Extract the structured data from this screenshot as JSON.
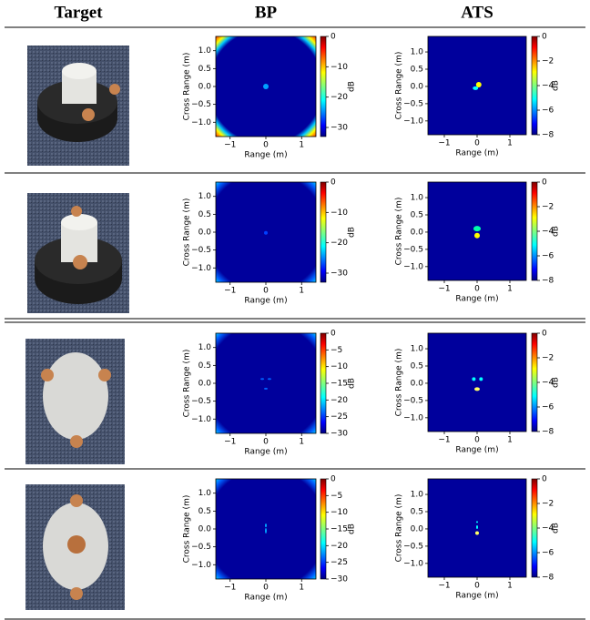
{
  "header": {
    "target": "Target",
    "bp": "BP",
    "ats": "ATS"
  },
  "rows": [
    {
      "bp": {
        "xlabel": "Range (m)",
        "ylabel": "Cross Range (m)",
        "xlim": [
          -1.4,
          1.4
        ],
        "ylim": [
          -1.4,
          1.4
        ],
        "xticks": [
          {
            "value": -1,
            "label": "−1"
          },
          0,
          1
        ],
        "yticks": [
          {
            "value": -1,
            "label": "−1.0"
          },
          {
            "value": -0.5,
            "label": "−0.5"
          },
          {
            "value": 0,
            "label": "0.0"
          },
          0.5,
          {
            "value": 1,
            "label": "1.0"
          }
        ],
        "colorbar": {
          "label": "dB",
          "lim": [
            -33,
            0
          ],
          "ticks": [
            0,
            {
              "value": -10,
              "label": "−10"
            },
            {
              "value": -20,
              "label": "−20"
            },
            {
              "value": -30,
              "label": "−30"
            }
          ]
        }
      },
      "ats": {
        "xlabel": "Range (m)",
        "ylabel": "Cross Range (m)",
        "xlim": [
          -1.5,
          1.5
        ],
        "ylim": [
          -1.4,
          1.45
        ],
        "xticks": [
          {
            "value": -1,
            "label": "−1"
          },
          0,
          1
        ],
        "yticks": [
          {
            "value": -1,
            "label": "−1.0"
          },
          {
            "value": -0.5,
            "label": "−0.5"
          },
          {
            "value": 0,
            "label": "0.0"
          },
          0.5,
          {
            "value": 1,
            "label": "1.0"
          }
        ],
        "colorbar": {
          "label": "dB",
          "lim": [
            -8,
            0
          ],
          "ticks": [
            0,
            {
              "value": -2,
              "label": "−2"
            },
            {
              "value": -4,
              "label": "−4"
            },
            {
              "value": -6,
              "label": "−6"
            },
            {
              "value": -8,
              "label": "−8"
            }
          ]
        }
      }
    },
    {
      "bp": {
        "xlabel": "Range (m)",
        "ylabel": "Cross Range (m)",
        "xlim": [
          -1.4,
          1.4
        ],
        "ylim": [
          -1.4,
          1.4
        ],
        "xticks": [
          {
            "value": -1,
            "label": "−1"
          },
          0,
          1
        ],
        "yticks": [
          {
            "value": -1,
            "label": "−1.0"
          },
          {
            "value": -0.5,
            "label": "−0.5"
          },
          {
            "value": 0,
            "label": "0.0"
          },
          0.5,
          {
            "value": 1,
            "label": "1.0"
          }
        ],
        "colorbar": {
          "label": "dB",
          "lim": [
            -33,
            0
          ],
          "ticks": [
            0,
            {
              "value": -10,
              "label": "−10"
            },
            {
              "value": -20,
              "label": "−20"
            },
            {
              "value": -30,
              "label": "−30"
            }
          ]
        }
      },
      "ats": {
        "xlabel": "Range (m)",
        "ylabel": "Cross Range (m)",
        "xlim": [
          -1.5,
          1.5
        ],
        "ylim": [
          -1.4,
          1.45
        ],
        "xticks": [
          {
            "value": -1,
            "label": "−1"
          },
          0,
          1
        ],
        "yticks": [
          {
            "value": -1,
            "label": "−1.0"
          },
          {
            "value": -0.5,
            "label": "−0.5"
          },
          {
            "value": 0,
            "label": "0.0"
          },
          0.5,
          {
            "value": 1,
            "label": "1.0"
          }
        ],
        "colorbar": {
          "label": "dB",
          "lim": [
            -8,
            0
          ],
          "ticks": [
            0,
            {
              "value": -2,
              "label": "−2"
            },
            {
              "value": -4,
              "label": "−4"
            },
            {
              "value": -6,
              "label": "−6"
            },
            {
              "value": -8,
              "label": "−8"
            }
          ]
        }
      }
    },
    {
      "bp": {
        "xlabel": "Range (m)",
        "ylabel": "Cross Range (m)",
        "xlim": [
          -1.4,
          1.4
        ],
        "ylim": [
          -1.4,
          1.4
        ],
        "xticks": [
          {
            "value": -1,
            "label": "−1"
          },
          0,
          1
        ],
        "yticks": [
          {
            "value": -1,
            "label": "−1.0"
          },
          {
            "value": -0.5,
            "label": "−0.5"
          },
          {
            "value": 0,
            "label": "0.0"
          },
          0.5,
          {
            "value": 1,
            "label": "1.0"
          }
        ],
        "colorbar": {
          "label": "dB",
          "lim": [
            -30,
            0
          ],
          "ticks": [
            0,
            {
              "value": -5,
              "label": "−5"
            },
            {
              "value": -10,
              "label": "−10"
            },
            {
              "value": -15,
              "label": "−15"
            },
            {
              "value": -20,
              "label": "−20"
            },
            {
              "value": -25,
              "label": "−25"
            },
            {
              "value": -30,
              "label": "−30"
            }
          ]
        }
      },
      "ats": {
        "xlabel": "Range (m)",
        "ylabel": "Cross Range (m)",
        "xlim": [
          -1.5,
          1.5
        ],
        "ylim": [
          -1.4,
          1.45
        ],
        "xticks": [
          {
            "value": -1,
            "label": "−1"
          },
          0,
          1
        ],
        "yticks": [
          {
            "value": -1,
            "label": "−1.0"
          },
          {
            "value": -0.5,
            "label": "−0.5"
          },
          {
            "value": 0,
            "label": "0.0"
          },
          0.5,
          {
            "value": 1,
            "label": "1.0"
          }
        ],
        "colorbar": {
          "label": "dB",
          "lim": [
            -8,
            0
          ],
          "ticks": [
            0,
            {
              "value": -2,
              "label": "−2"
            },
            {
              "value": -4,
              "label": "−4"
            },
            {
              "value": -6,
              "label": "−6"
            },
            {
              "value": -8,
              "label": "−8"
            }
          ]
        }
      }
    },
    {
      "bp": {
        "xlabel": "Range (m)",
        "ylabel": "Cross Range (m)",
        "xlim": [
          -1.4,
          1.4
        ],
        "ylim": [
          -1.4,
          1.4
        ],
        "xticks": [
          {
            "value": -1,
            "label": "−1"
          },
          0,
          1
        ],
        "yticks": [
          {
            "value": -1,
            "label": "−1.0"
          },
          {
            "value": -0.5,
            "label": "−0.5"
          },
          {
            "value": 0,
            "label": "0.0"
          },
          0.5,
          {
            "value": 1,
            "label": "1.0"
          }
        ],
        "colorbar": {
          "label": "dB",
          "lim": [
            -30,
            0
          ],
          "ticks": [
            0,
            {
              "value": -5,
              "label": "−5"
            },
            {
              "value": -10,
              "label": "−10"
            },
            {
              "value": -15,
              "label": "−15"
            },
            {
              "value": -20,
              "label": "−20"
            },
            {
              "value": -25,
              "label": "−25"
            },
            {
              "value": -30,
              "label": "−30"
            }
          ]
        }
      },
      "ats": {
        "xlabel": "Range (m)",
        "ylabel": "Cross Range (m)",
        "xlim": [
          -1.5,
          1.5
        ],
        "ylim": [
          -1.4,
          1.45
        ],
        "xticks": [
          {
            "value": -1,
            "label": "−1"
          },
          0,
          1
        ],
        "yticks": [
          {
            "value": -1,
            "label": "−1.0"
          },
          {
            "value": -0.5,
            "label": "−0.5"
          },
          {
            "value": 0,
            "label": "0.0"
          },
          0.5,
          {
            "value": 1,
            "label": "1.0"
          }
        ],
        "colorbar": {
          "label": "dB",
          "lim": [
            -8,
            0
          ],
          "ticks": [
            0,
            {
              "value": -2,
              "label": "−2"
            },
            {
              "value": -4,
              "label": "−4"
            },
            {
              "value": -6,
              "label": "−6"
            },
            {
              "value": -8,
              "label": "−8"
            }
          ]
        }
      }
    }
  ]
}
